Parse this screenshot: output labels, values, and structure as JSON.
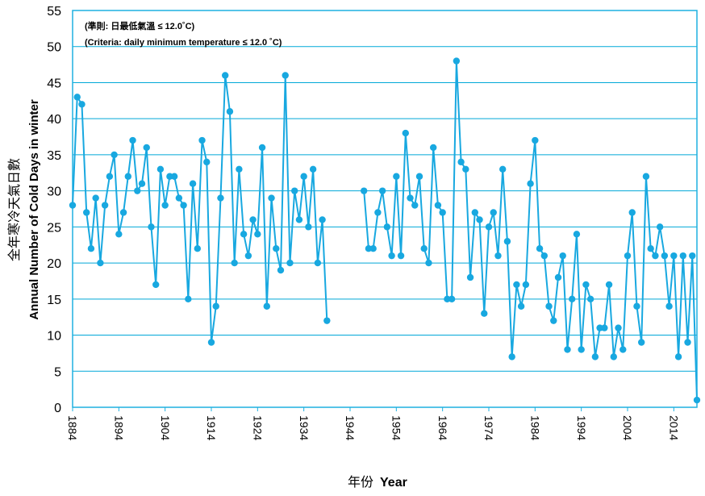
{
  "chart_data": {
    "type": "line",
    "title": "",
    "note_zh": "(準則: 日最低氣溫 ≤ 12.0˚C)",
    "note_en": "(Criteria: daily minimum temperature ≤ 12.0 ˚C)",
    "xlabel_zh": "年份",
    "xlabel_en": "Year",
    "ylabel_zh": "全年寒冷天氣日數",
    "ylabel_en": "Annual Number of Cold Days in winter",
    "xlim": [
      1884,
      2019
    ],
    "ylim": [
      0,
      55
    ],
    "y_ticks": [
      0,
      5,
      10,
      15,
      20,
      25,
      30,
      35,
      40,
      45,
      50,
      55
    ],
    "x_ticks": [
      "1884",
      "1894",
      "1904",
      "1914",
      "1924",
      "1934",
      "1944",
      "1954",
      "1964",
      "1974",
      "1984",
      "1994",
      "2004",
      "2014"
    ],
    "grid": true,
    "colors": {
      "line": "#18a8e0",
      "grid": "#00a8d8",
      "frame": "#1eb0e0"
    },
    "series": [
      {
        "name": "Cold days",
        "segments": [
          {
            "x": [
              1884,
              1885,
              1886,
              1887,
              1888,
              1889,
              1890,
              1891,
              1892,
              1893,
              1894,
              1895,
              1896,
              1897,
              1898,
              1899,
              1900,
              1901,
              1902,
              1903,
              1904,
              1905,
              1906,
              1907,
              1908,
              1909,
              1910,
              1911,
              1912,
              1913,
              1914,
              1915,
              1916,
              1917,
              1918,
              1919,
              1920,
              1921,
              1922,
              1923,
              1924,
              1925,
              1926,
              1927,
              1928,
              1929,
              1930,
              1931,
              1932,
              1933,
              1934,
              1935,
              1936,
              1937,
              1938,
              1939
            ],
            "y": [
              28,
              43,
              42,
              27,
              22,
              29,
              20,
              28,
              32,
              35,
              24,
              27,
              32,
              37,
              30,
              31,
              36,
              25,
              17,
              33,
              28,
              32,
              32,
              29,
              28,
              15,
              31,
              22,
              37,
              34,
              9,
              14,
              29,
              46,
              41,
              20,
              33,
              24,
              21,
              26,
              24,
              36,
              14,
              29,
              22,
              19,
              46,
              20,
              30,
              26,
              32,
              25,
              33,
              20,
              26,
              12
            ]
          },
          {
            "x": [
              1947,
              1948,
              1949,
              1950,
              1951,
              1952,
              1953,
              1954,
              1955,
              1956,
              1957,
              1958,
              1959,
              1960,
              1961,
              1962,
              1963,
              1964,
              1965,
              1966,
              1967,
              1968,
              1969,
              1970,
              1971,
              1972,
              1973,
              1974,
              1975,
              1976,
              1977,
              1978,
              1979,
              1980,
              1981,
              1982,
              1983,
              1984,
              1985,
              1986,
              1987,
              1988,
              1989,
              1990,
              1991,
              1992,
              1993,
              1994,
              1995,
              1996,
              1997,
              1998,
              1999,
              2000,
              2001,
              2002,
              2003,
              2004,
              2005,
              2006,
              2007,
              2008,
              2009,
              2010,
              2011,
              2012,
              2013,
              2014,
              2015,
              2016,
              2017,
              2018,
              2019
            ],
            "y": [
              30,
              22,
              22,
              27,
              30,
              25,
              21,
              32,
              21,
              38,
              29,
              28,
              32,
              22,
              20,
              36,
              28,
              27,
              15,
              15,
              48,
              34,
              33,
              18,
              27,
              26,
              13,
              25,
              27,
              21,
              33,
              23,
              7,
              17,
              14,
              17,
              31,
              37,
              22,
              21,
              14,
              12,
              18,
              21,
              8,
              15,
              24,
              8,
              17,
              15,
              7,
              11,
              11,
              17,
              7,
              11,
              8,
              21,
              27,
              14,
              9,
              32,
              22,
              21,
              25,
              21,
              14,
              21,
              7,
              21,
              9,
              21,
              1
            ]
          }
        ]
      }
    ]
  }
}
